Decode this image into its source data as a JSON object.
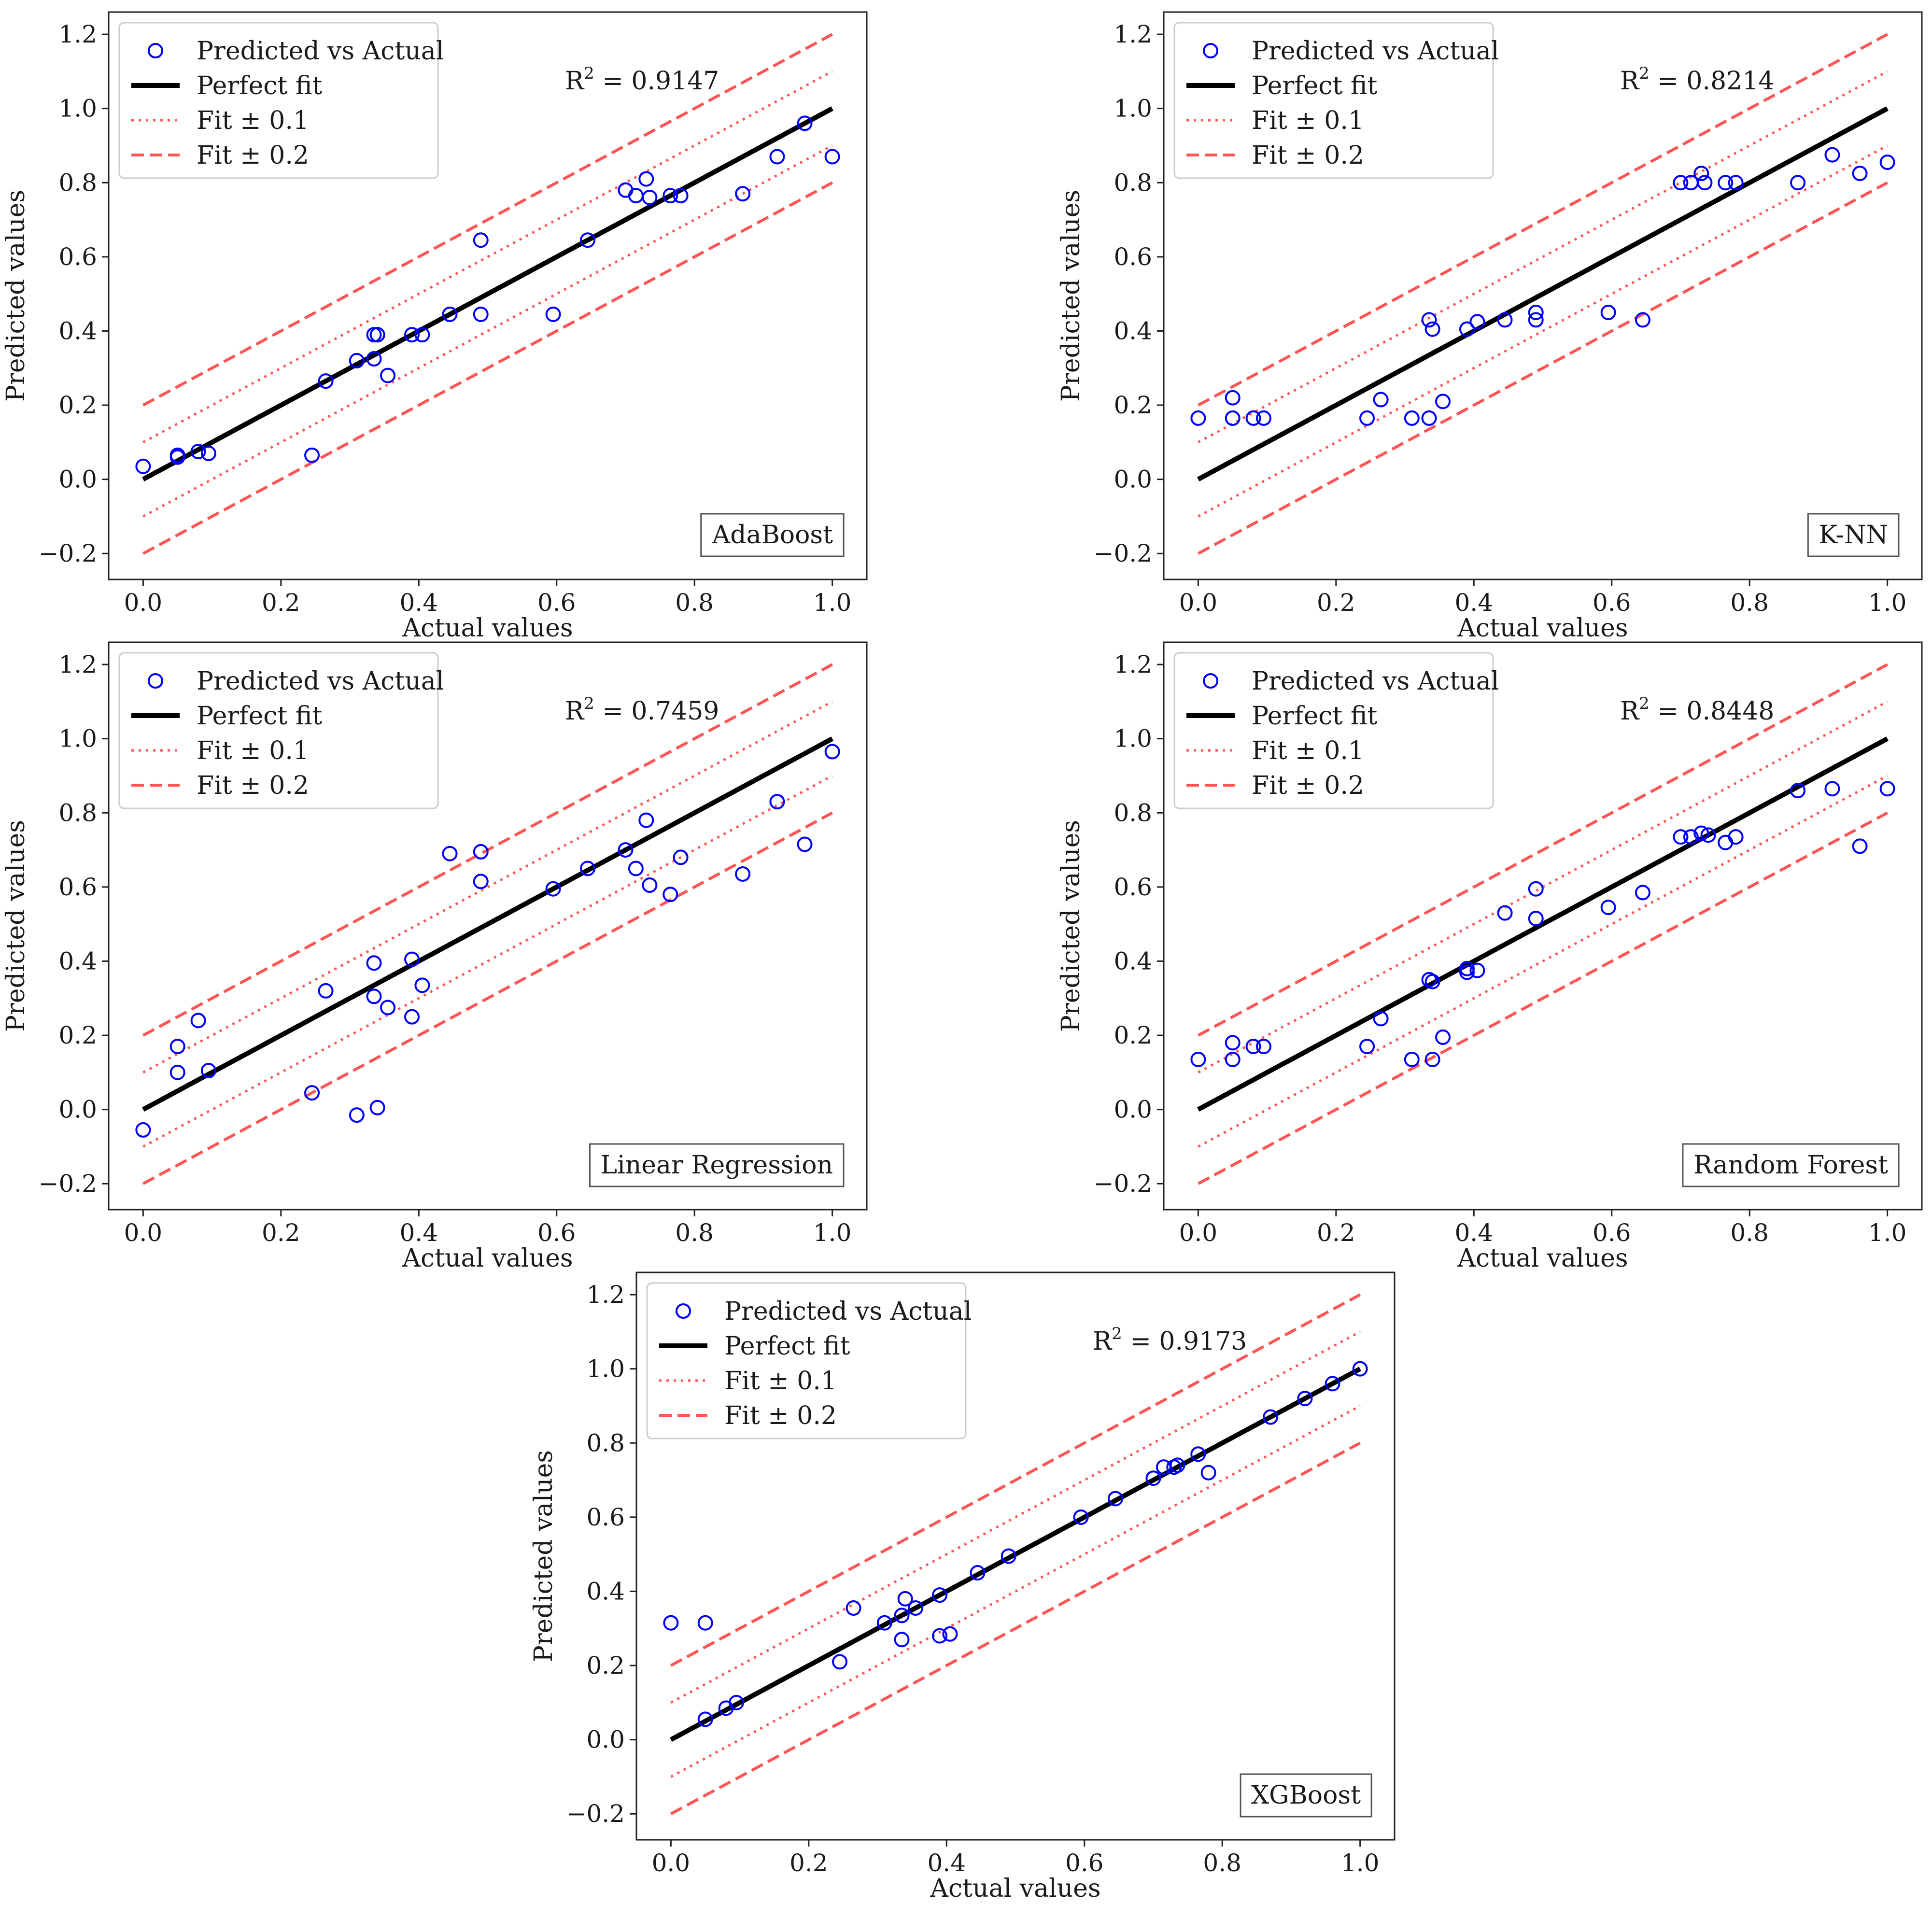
{
  "figure": {
    "layout": "3x2 grid, last panel centered",
    "legend_labels": {
      "points": "Predicted vs Actual",
      "perfect": "Perfect fit",
      "fit1": "Fit ± 0.1",
      "fit2": "Fit ± 0.2"
    },
    "colors": {
      "points": "#0000ff",
      "perfect": "#000000",
      "bands": "#ff5555"
    }
  },
  "chart_data": [
    {
      "type": "scatter",
      "model": "AdaBoost",
      "r2_prefix": "R",
      "r2_sup": "2",
      "r2_value": " = 0.9147",
      "xlabel": "Actual values",
      "ylabel": "Predicted values",
      "xlim": [
        -0.05,
        1.05
      ],
      "ylim": [
        -0.27,
        1.26
      ],
      "xticks": [
        0.0,
        0.2,
        0.4,
        0.6,
        0.8,
        1.0
      ],
      "yticks": [
        -0.2,
        0.0,
        0.2,
        0.4,
        0.6,
        0.8,
        1.0,
        1.2
      ],
      "xtick_labels": [
        "0.0",
        "0.2",
        "0.4",
        "0.6",
        "0.8",
        "1.0"
      ],
      "ytick_labels": [
        "−0.2",
        "0.0",
        "0.2",
        "0.4",
        "0.6",
        "0.8",
        "1.0",
        "1.2"
      ],
      "x": [
        0.0,
        0.05,
        0.05,
        0.08,
        0.095,
        0.245,
        0.265,
        0.31,
        0.335,
        0.335,
        0.34,
        0.34,
        0.355,
        0.39,
        0.405,
        0.445,
        0.49,
        0.49,
        0.595,
        0.645,
        0.7,
        0.715,
        0.73,
        0.735,
        0.765,
        0.78,
        0.87,
        0.92,
        0.96,
        1.0
      ],
      "y": [
        0.035,
        0.06,
        0.065,
        0.075,
        0.07,
        0.065,
        0.265,
        0.32,
        0.39,
        0.325,
        0.39,
        0.39,
        0.28,
        0.39,
        0.39,
        0.445,
        0.445,
        0.645,
        0.445,
        0.645,
        0.78,
        0.765,
        0.81,
        0.76,
        0.765,
        0.765,
        0.77,
        0.87,
        0.96,
        0.87
      ]
    },
    {
      "type": "scatter",
      "model": "K-NN",
      "r2_prefix": "R",
      "r2_sup": "2",
      "r2_value": " = 0.8214",
      "xlabel": "Actual values",
      "ylabel": "Predicted values",
      "xlim": [
        -0.05,
        1.05
      ],
      "ylim": [
        -0.27,
        1.26
      ],
      "xticks": [
        0.0,
        0.2,
        0.4,
        0.6,
        0.8,
        1.0
      ],
      "yticks": [
        -0.2,
        0.0,
        0.2,
        0.4,
        0.6,
        0.8,
        1.0,
        1.2
      ],
      "xtick_labels": [
        "0.0",
        "0.2",
        "0.4",
        "0.6",
        "0.8",
        "1.0"
      ],
      "ytick_labels": [
        "−0.2",
        "0.0",
        "0.2",
        "0.4",
        "0.6",
        "0.8",
        "1.0",
        "1.2"
      ],
      "x": [
        0.0,
        0.05,
        0.05,
        0.08,
        0.095,
        0.245,
        0.265,
        0.31,
        0.335,
        0.335,
        0.34,
        0.355,
        0.39,
        0.405,
        0.445,
        0.49,
        0.49,
        0.595,
        0.645,
        0.7,
        0.715,
        0.73,
        0.735,
        0.765,
        0.78,
        0.87,
        0.92,
        0.96,
        1.0
      ],
      "y": [
        0.165,
        0.165,
        0.22,
        0.165,
        0.165,
        0.165,
        0.215,
        0.165,
        0.43,
        0.165,
        0.405,
        0.21,
        0.405,
        0.425,
        0.43,
        0.43,
        0.45,
        0.45,
        0.43,
        0.8,
        0.8,
        0.825,
        0.8,
        0.8,
        0.8,
        0.8,
        0.875,
        0.825,
        0.855
      ]
    },
    {
      "type": "scatter",
      "model": "Linear Regression",
      "r2_prefix": "R",
      "r2_sup": "2",
      "r2_value": " = 0.7459",
      "xlabel": "Actual values",
      "ylabel": "Predicted values",
      "xlim": [
        -0.05,
        1.05
      ],
      "ylim": [
        -0.27,
        1.26
      ],
      "xticks": [
        0.0,
        0.2,
        0.4,
        0.6,
        0.8,
        1.0
      ],
      "yticks": [
        -0.2,
        0.0,
        0.2,
        0.4,
        0.6,
        0.8,
        1.0,
        1.2
      ],
      "xtick_labels": [
        "0.0",
        "0.2",
        "0.4",
        "0.6",
        "0.8",
        "1.0"
      ],
      "ytick_labels": [
        "−0.2",
        "0.0",
        "0.2",
        "0.4",
        "0.6",
        "0.8",
        "1.0",
        "1.2"
      ],
      "x": [
        0.0,
        0.05,
        0.05,
        0.08,
        0.095,
        0.245,
        0.265,
        0.31,
        0.335,
        0.335,
        0.34,
        0.355,
        0.39,
        0.39,
        0.405,
        0.445,
        0.49,
        0.49,
        0.595,
        0.645,
        0.7,
        0.715,
        0.73,
        0.735,
        0.765,
        0.78,
        0.87,
        0.92,
        0.96,
        1.0
      ],
      "y": [
        -0.055,
        0.1,
        0.17,
        0.24,
        0.105,
        0.045,
        0.32,
        -0.015,
        0.395,
        0.305,
        0.005,
        0.275,
        0.25,
        0.405,
        0.335,
        0.69,
        0.615,
        0.695,
        0.595,
        0.65,
        0.7,
        0.65,
        0.78,
        0.605,
        0.58,
        0.68,
        0.635,
        0.83,
        0.715,
        0.965
      ]
    },
    {
      "type": "scatter",
      "model": "Random Forest",
      "r2_prefix": "R",
      "r2_sup": "2",
      "r2_value": " = 0.8448",
      "xlabel": "Actual values",
      "ylabel": "Predicted values",
      "xlim": [
        -0.05,
        1.05
      ],
      "ylim": [
        -0.27,
        1.26
      ],
      "xticks": [
        0.0,
        0.2,
        0.4,
        0.6,
        0.8,
        1.0
      ],
      "yticks": [
        -0.2,
        0.0,
        0.2,
        0.4,
        0.6,
        0.8,
        1.0,
        1.2
      ],
      "xtick_labels": [
        "0.0",
        "0.2",
        "0.4",
        "0.6",
        "0.8",
        "1.0"
      ],
      "ytick_labels": [
        "−0.2",
        "0.0",
        "0.2",
        "0.4",
        "0.6",
        "0.8",
        "1.0",
        "1.2"
      ],
      "x": [
        0.0,
        0.05,
        0.05,
        0.08,
        0.095,
        0.245,
        0.265,
        0.31,
        0.335,
        0.34,
        0.34,
        0.355,
        0.39,
        0.39,
        0.405,
        0.445,
        0.49,
        0.49,
        0.595,
        0.645,
        0.7,
        0.715,
        0.73,
        0.74,
        0.765,
        0.78,
        0.87,
        0.92,
        0.96,
        1.0
      ],
      "y": [
        0.135,
        0.135,
        0.18,
        0.17,
        0.17,
        0.17,
        0.245,
        0.135,
        0.35,
        0.345,
        0.135,
        0.195,
        0.37,
        0.38,
        0.375,
        0.53,
        0.515,
        0.595,
        0.545,
        0.585,
        0.735,
        0.735,
        0.745,
        0.74,
        0.72,
        0.735,
        0.86,
        0.865,
        0.71,
        0.865
      ]
    },
    {
      "type": "scatter",
      "model": "XGBoost",
      "r2_prefix": "R",
      "r2_sup": "2",
      "r2_value": " = 0.9173",
      "xlabel": "Actual values",
      "ylabel": "Predicted values",
      "xlim": [
        -0.05,
        1.05
      ],
      "ylim": [
        -0.27,
        1.26
      ],
      "xticks": [
        0.0,
        0.2,
        0.4,
        0.6,
        0.8,
        1.0
      ],
      "yticks": [
        -0.2,
        0.0,
        0.2,
        0.4,
        0.6,
        0.8,
        1.0,
        1.2
      ],
      "xtick_labels": [
        "0.0",
        "0.2",
        "0.4",
        "0.6",
        "0.8",
        "1.0"
      ],
      "ytick_labels": [
        "−0.2",
        "0.0",
        "0.2",
        "0.4",
        "0.6",
        "0.8",
        "1.0",
        "1.2"
      ],
      "x": [
        0.0,
        0.05,
        0.05,
        0.08,
        0.095,
        0.245,
        0.265,
        0.31,
        0.335,
        0.335,
        0.34,
        0.355,
        0.39,
        0.39,
        0.405,
        0.445,
        0.49,
        0.595,
        0.645,
        0.7,
        0.715,
        0.73,
        0.735,
        0.765,
        0.78,
        0.87,
        0.92,
        0.96,
        1.0
      ],
      "y": [
        0.315,
        0.315,
        0.055,
        0.085,
        0.1,
        0.21,
        0.355,
        0.315,
        0.27,
        0.335,
        0.38,
        0.355,
        0.28,
        0.39,
        0.285,
        0.45,
        0.495,
        0.6,
        0.65,
        0.705,
        0.735,
        0.735,
        0.74,
        0.77,
        0.72,
        0.87,
        0.92,
        0.96,
        1.0
      ]
    }
  ]
}
